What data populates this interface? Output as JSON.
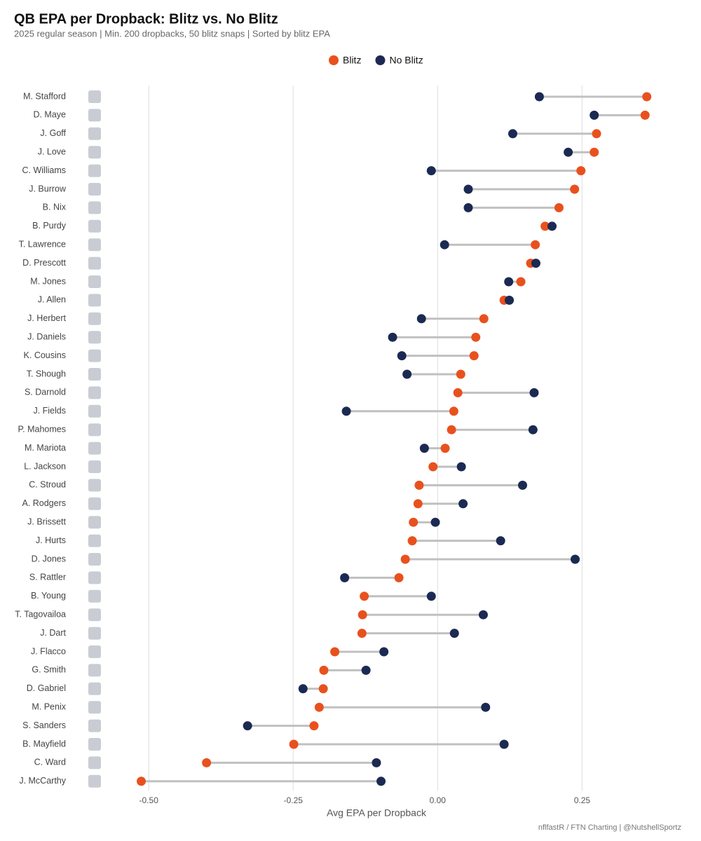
{
  "chart_data": {
    "type": "dumbbell",
    "title": "QB EPA per Dropback: Blitz vs. No Blitz",
    "subtitle": "2025 regular season | Min. 200 dropbacks, 50 blitz snaps | Sorted by blitz EPA",
    "x_label": "Avg EPA per Dropback",
    "source": "nflfastR / FTN Charting | @NutshellSportz",
    "legend": "top",
    "grid": true,
    "categories": [
      "M. Stafford",
      "D. Maye",
      "J. Goff",
      "J. Love",
      "C. Williams",
      "J. Burrow",
      "B. Nix",
      "B. Purdy",
      "T. Lawrence",
      "D. Prescott",
      "M. Jones",
      "J. Allen",
      "J. Herbert",
      "J. Daniels",
      "K. Cousins",
      "T. Shough",
      "S. Darnold",
      "J. Fields",
      "P. Mahomes",
      "M. Mariota",
      "L. Jackson",
      "C. Stroud",
      "A. Rodgers",
      "J. Brissett",
      "J. Hurts",
      "D. Jones",
      "S. Rattler",
      "B. Young",
      "T. Tagovailoa",
      "J. Dart",
      "J. Flacco",
      "G. Smith",
      "D. Gabriel",
      "M. Penix",
      "S. Sanders",
      "B. Mayfield",
      "C. Ward",
      "J. McCarthy"
    ],
    "series": [
      {
        "name": "Blitz",
        "color": "#e8511e",
        "values": [
          0.362,
          0.359,
          0.275,
          0.271,
          0.248,
          0.237,
          0.21,
          0.186,
          0.169,
          0.161,
          0.144,
          0.115,
          0.08,
          0.066,
          0.063,
          0.04,
          0.035,
          0.028,
          0.024,
          0.013,
          -0.008,
          -0.032,
          -0.034,
          -0.042,
          -0.044,
          -0.056,
          -0.067,
          -0.127,
          -0.13,
          -0.131,
          -0.178,
          -0.197,
          -0.198,
          -0.205,
          -0.214,
          -0.249,
          -0.4,
          -0.513
        ]
      },
      {
        "name": "No Blitz",
        "color": "#1b2a52",
        "values": [
          0.176,
          0.271,
          0.13,
          0.226,
          -0.011,
          0.053,
          0.053,
          0.198,
          0.012,
          0.17,
          0.123,
          0.124,
          -0.028,
          -0.078,
          -0.062,
          -0.053,
          0.167,
          -0.158,
          0.165,
          -0.023,
          0.041,
          0.147,
          0.044,
          -0.004,
          0.109,
          0.238,
          -0.161,
          -0.011,
          0.079,
          0.029,
          -0.093,
          -0.124,
          -0.233,
          0.083,
          -0.329,
          0.115,
          -0.106,
          -0.098
        ]
      }
    ],
    "xlim": [
      -0.55,
      0.4
    ],
    "xticks": [
      {
        "value": -0.5,
        "label": "-0.50"
      },
      {
        "value": -0.25,
        "label": "-0.25"
      },
      {
        "value": 0,
        "label": "0.00"
      },
      {
        "value": 0.25,
        "label": "0.25"
      }
    ]
  }
}
